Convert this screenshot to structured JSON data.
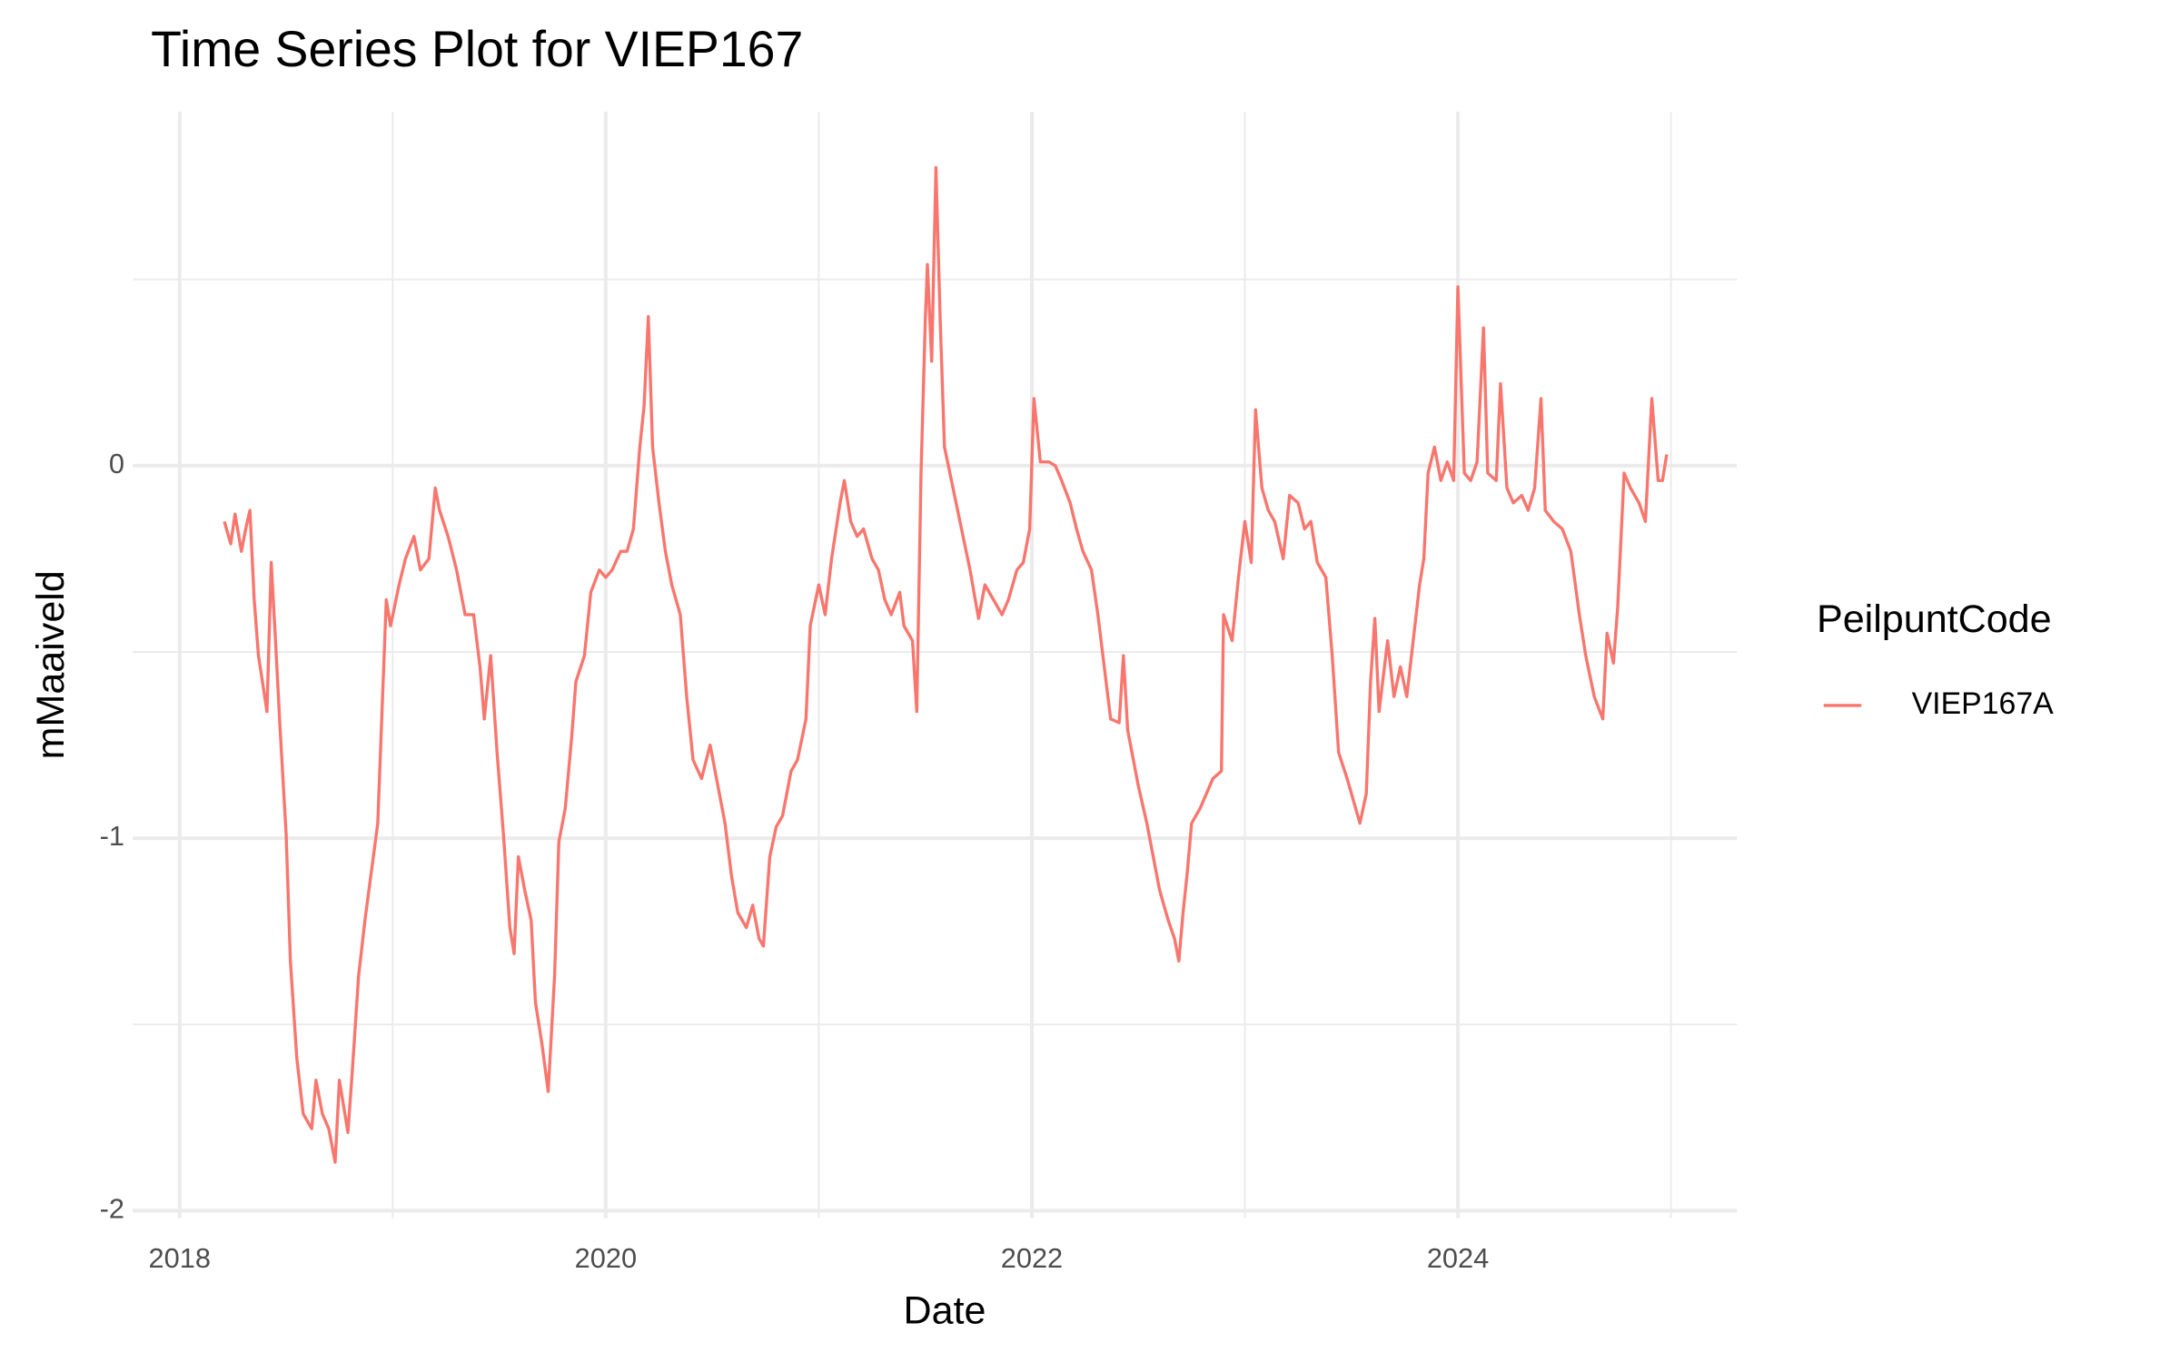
{
  "chart_data": {
    "type": "line",
    "title": "Time Series Plot for VIEP167",
    "x_label": "Date",
    "y_label": "mMaaiveld",
    "legend_title": "PeilpuntCode",
    "legend_position": "right",
    "grid": true,
    "xlim": [
      2017.78,
      2025.31
    ],
    "ylim": [
      -2.02,
      0.95
    ],
    "xticks": [
      2018,
      2020,
      2022,
      2024
    ],
    "yticks": [
      -2,
      -1,
      0
    ],
    "x_minor_gridlines": [
      2019,
      2021,
      2023,
      2025
    ],
    "y_minor_gridlines": [
      -1.5,
      -0.5,
      0.5
    ],
    "x": [
      2018.21,
      2018.24,
      2018.26,
      2018.29,
      2018.31,
      2018.33,
      2018.35,
      2018.37,
      2018.41,
      2018.43,
      2018.45,
      2018.47,
      2018.5,
      2018.52,
      2018.55,
      2018.58,
      2018.62,
      2018.64,
      2018.67,
      2018.7,
      2018.73,
      2018.75,
      2018.79,
      2018.81,
      2018.84,
      2018.87,
      2018.9,
      2018.93,
      2018.95,
      2018.97,
      2018.99,
      2019.03,
      2019.06,
      2019.1,
      2019.13,
      2019.17,
      2019.2,
      2019.22,
      2019.26,
      2019.3,
      2019.34,
      2019.38,
      2019.41,
      2019.43,
      2019.46,
      2019.49,
      2019.52,
      2019.55,
      2019.57,
      2019.59,
      2019.62,
      2019.65,
      2019.67,
      2019.7,
      2019.73,
      2019.76,
      2019.78,
      2019.81,
      2019.84,
      2019.86,
      2019.9,
      2019.93,
      2019.97,
      2020.0,
      2020.03,
      2020.07,
      2020.1,
      2020.13,
      2020.16,
      2020.18,
      2020.2,
      2020.22,
      2020.25,
      2020.28,
      2020.31,
      2020.35,
      2020.38,
      2020.41,
      2020.45,
      2020.49,
      2020.52,
      2020.56,
      2020.59,
      2020.62,
      2020.66,
      2020.69,
      2020.72,
      2020.74,
      2020.77,
      2020.8,
      2020.83,
      2020.87,
      2020.9,
      2020.94,
      2020.96,
      2021.0,
      2021.03,
      2021.06,
      2021.1,
      2021.12,
      2021.15,
      2021.18,
      2021.21,
      2021.25,
      2021.28,
      2021.31,
      2021.34,
      2021.38,
      2021.4,
      2021.44,
      2021.46,
      2021.48,
      2021.5,
      2021.51,
      2021.53,
      2021.55,
      2021.57,
      2021.59,
      2021.63,
      2021.67,
      2021.71,
      2021.75,
      2021.78,
      2021.82,
      2021.86,
      2021.89,
      2021.93,
      2021.96,
      2021.99,
      2022.01,
      2022.04,
      2022.08,
      2022.11,
      2022.14,
      2022.18,
      2022.21,
      2022.24,
      2022.28,
      2022.31,
      2022.34,
      2022.37,
      2022.41,
      2022.43,
      2022.45,
      2022.47,
      2022.5,
      2022.54,
      2022.57,
      2022.6,
      2022.64,
      2022.67,
      2022.69,
      2022.71,
      2022.73,
      2022.75,
      2022.79,
      2022.82,
      2022.85,
      2022.89,
      2022.9,
      2022.94,
      2022.97,
      2023.0,
      2023.03,
      2023.05,
      2023.08,
      2023.11,
      2023.14,
      2023.18,
      2023.21,
      2023.25,
      2023.28,
      2023.31,
      2023.34,
      2023.38,
      2023.41,
      2023.44,
      2023.48,
      2023.51,
      2023.54,
      2023.57,
      2023.59,
      2023.61,
      2023.63,
      2023.67,
      2023.7,
      2023.73,
      2023.76,
      2023.79,
      2023.82,
      2023.84,
      2023.86,
      2023.89,
      2023.92,
      2023.95,
      2023.98,
      2024.0,
      2024.03,
      2024.06,
      2024.09,
      2024.12,
      2024.14,
      2024.18,
      2024.2,
      2024.23,
      2024.26,
      2024.3,
      2024.33,
      2024.36,
      2024.39,
      2024.41,
      2024.45,
      2024.49,
      2024.53,
      2024.57,
      2024.6,
      2024.64,
      2024.68,
      2024.7,
      2024.73,
      2024.75,
      2024.78,
      2024.81,
      2024.85,
      2024.88,
      2024.91,
      2024.94,
      2024.96,
      2024.98
    ],
    "series": [
      {
        "name": "VIEP167A",
        "color": "#F8766D",
        "values": [
          -0.15,
          -0.21,
          -0.13,
          -0.23,
          -0.17,
          -0.12,
          -0.36,
          -0.51,
          -0.66,
          -0.26,
          -0.47,
          -0.69,
          -0.99,
          -1.33,
          -1.59,
          -1.74,
          -1.78,
          -1.65,
          -1.74,
          -1.78,
          -1.87,
          -1.65,
          -1.79,
          -1.63,
          -1.37,
          -1.22,
          -1.09,
          -0.96,
          -0.66,
          -0.36,
          -0.43,
          -0.32,
          -0.25,
          -0.19,
          -0.28,
          -0.25,
          -0.06,
          -0.12,
          -0.19,
          -0.28,
          -0.4,
          -0.4,
          -0.54,
          -0.68,
          -0.51,
          -0.77,
          -0.99,
          -1.24,
          -1.31,
          -1.05,
          -1.14,
          -1.22,
          -1.44,
          -1.55,
          -1.68,
          -1.37,
          -1.01,
          -0.92,
          -0.73,
          -0.58,
          -0.51,
          -0.34,
          -0.28,
          -0.3,
          -0.28,
          -0.23,
          -0.23,
          -0.17,
          0.05,
          0.16,
          0.4,
          0.05,
          -0.1,
          -0.23,
          -0.32,
          -0.4,
          -0.62,
          -0.79,
          -0.84,
          -0.75,
          -0.84,
          -0.96,
          -1.1,
          -1.2,
          -1.24,
          -1.18,
          -1.27,
          -1.29,
          -1.05,
          -0.97,
          -0.94,
          -0.82,
          -0.79,
          -0.68,
          -0.43,
          -0.32,
          -0.4,
          -0.25,
          -0.1,
          -0.04,
          -0.15,
          -0.19,
          -0.17,
          -0.25,
          -0.28,
          -0.36,
          -0.4,
          -0.34,
          -0.43,
          -0.47,
          -0.66,
          -0.02,
          0.39,
          0.54,
          0.28,
          0.8,
          0.39,
          0.05,
          -0.06,
          -0.17,
          -0.28,
          -0.41,
          -0.32,
          -0.36,
          -0.4,
          -0.36,
          -0.28,
          -0.26,
          -0.17,
          0.18,
          0.01,
          0.01,
          0.0,
          -0.04,
          -0.1,
          -0.17,
          -0.23,
          -0.28,
          -0.4,
          -0.54,
          -0.68,
          -0.69,
          -0.51,
          -0.71,
          -0.77,
          -0.86,
          -0.96,
          -1.05,
          -1.14,
          -1.22,
          -1.27,
          -1.33,
          -1.2,
          -1.09,
          -0.96,
          -0.92,
          -0.88,
          -0.84,
          -0.82,
          -0.4,
          -0.47,
          -0.3,
          -0.15,
          -0.26,
          0.15,
          -0.06,
          -0.12,
          -0.15,
          -0.25,
          -0.08,
          -0.1,
          -0.17,
          -0.15,
          -0.26,
          -0.3,
          -0.51,
          -0.77,
          -0.84,
          -0.9,
          -0.96,
          -0.88,
          -0.58,
          -0.41,
          -0.66,
          -0.47,
          -0.62,
          -0.54,
          -0.62,
          -0.47,
          -0.32,
          -0.25,
          -0.02,
          0.05,
          -0.04,
          0.01,
          -0.04,
          0.48,
          -0.02,
          -0.04,
          0.01,
          0.37,
          -0.02,
          -0.04,
          0.22,
          -0.06,
          -0.1,
          -0.08,
          -0.12,
          -0.06,
          0.18,
          -0.12,
          -0.15,
          -0.17,
          -0.23,
          -0.4,
          -0.51,
          -0.62,
          -0.68,
          -0.45,
          -0.53,
          -0.38,
          -0.02,
          -0.06,
          -0.1,
          -0.15,
          0.18,
          -0.04,
          -0.04,
          0.03
        ]
      }
    ]
  }
}
